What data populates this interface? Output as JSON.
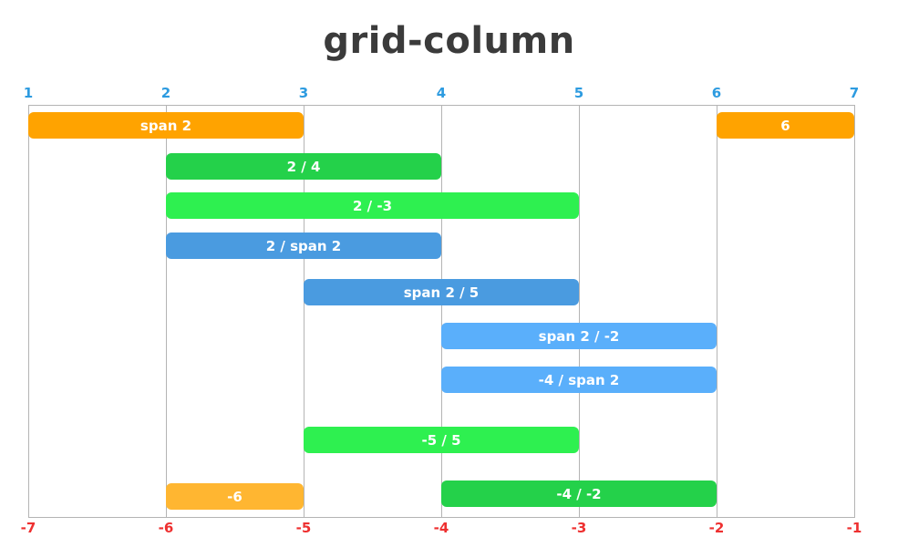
{
  "title": "grid-column",
  "positive_lines": [
    "1",
    "2",
    "3",
    "4",
    "5",
    "6",
    "7"
  ],
  "negative_lines": [
    "-7",
    "-6",
    "-5",
    "-4",
    "-3",
    "-2",
    "-1"
  ],
  "colors": {
    "positive_label": "#2d9be0",
    "negative_label": "#ee3030",
    "grid_line": "#b4b4b4"
  },
  "bars": [
    {
      "label": "span 2",
      "start": 1,
      "end": 3,
      "color": "#ffa300"
    },
    {
      "label": "6",
      "start": 6,
      "end": 7,
      "color": "#ffa300"
    },
    {
      "label": "2 / 4",
      "start": 2,
      "end": 4,
      "color": "#24d14a"
    },
    {
      "label": "2 / -3",
      "start": 2,
      "end": 5,
      "color": "#2ef050"
    },
    {
      "label": "2 / span 2",
      "start": 2,
      "end": 4,
      "color": "#4a9be0"
    },
    {
      "label": "span 2 / 5",
      "start": 3,
      "end": 5,
      "color": "#4a9be0"
    },
    {
      "label": "span 2 / -2",
      "start": 4,
      "end": 6,
      "color": "#5aaffb"
    },
    {
      "label": "-4 / span 2",
      "start": 4,
      "end": 6,
      "color": "#5aaffb"
    },
    {
      "label": "-5 / 5",
      "start": 3,
      "end": 5,
      "color": "#2ef050"
    },
    {
      "label": "-6",
      "start": 2,
      "end": 3,
      "color": "#ffb631"
    },
    {
      "label": "-4 / -2",
      "start": 4,
      "end": 6,
      "color": "#24d14a"
    }
  ]
}
